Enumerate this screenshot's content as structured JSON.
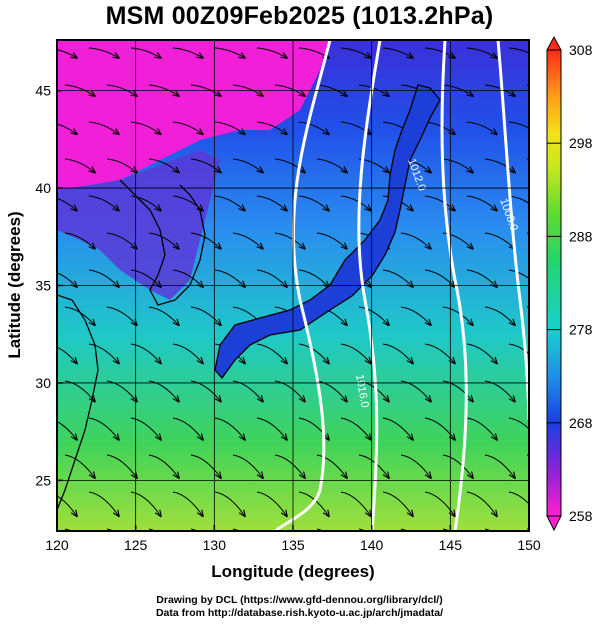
{
  "title": "MSM 00Z09Feb2025 (1013.2hPa)",
  "x_axis": {
    "label": "Longitude (degrees)",
    "ticks": [
      "120",
      "125",
      "130",
      "135",
      "140",
      "145",
      "150"
    ],
    "range": [
      120,
      150
    ]
  },
  "y_axis": {
    "label": "Latitude  (degrees)",
    "ticks": [
      "25",
      "30",
      "35",
      "40",
      "45"
    ],
    "range": [
      22.4,
      47.6
    ]
  },
  "colorbar": {
    "ticks": [
      "308",
      "298",
      "288",
      "278",
      "268",
      "258"
    ],
    "range": [
      258,
      308
    ]
  },
  "contour_labels": [
    "1016.0",
    "1012.0",
    "1008.0",
    "1016.0",
    "1012.0",
    "1008.0"
  ],
  "credits": {
    "line1": "Drawing by DCL (https://www.gfd-dennou.org/library/dcl/)",
    "line2": "Data from http://database.rish.kyoto-u.ac.jp/arch/jmadata/"
  },
  "colors": {
    "warm": "#ff2020",
    "mid": "#3fd03f",
    "cool": "#1b4fe0",
    "cold": "#ff18d8"
  }
}
